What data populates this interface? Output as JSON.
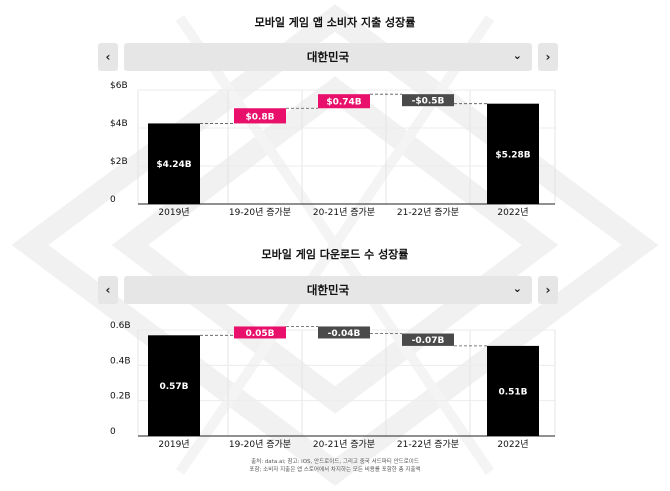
{
  "chart_data": [
    {
      "type": "waterfall",
      "title": "모바일 게임 앱 소비자 지출 성장률",
      "selector": {
        "value": "대한민국",
        "prev": "‹",
        "next": "›",
        "chevron": "⌄"
      },
      "categories": [
        "2019년",
        "19-20년 증가분",
        "20-21년 증가분",
        "21-22년 증가분",
        "2022년"
      ],
      "values": [
        4.24,
        0.8,
        0.74,
        -0.5,
        5.28
      ],
      "kinds": [
        "total",
        "delta",
        "delta",
        "delta",
        "total"
      ],
      "labels": [
        "$4.24B",
        "$0.8B",
        "$0.74B",
        "-$0.5B",
        "$5.28B"
      ],
      "yticks": [
        0,
        2,
        4,
        6
      ],
      "yticklabels": [
        "0",
        "$2B",
        "$4B",
        "$6B"
      ],
      "ylim": [
        0,
        6
      ],
      "grid": true,
      "colors": {
        "total": "#000000",
        "increase": "#e8106a",
        "decrease": "#4a4a4a"
      }
    },
    {
      "type": "waterfall",
      "title": "모바일 게임 다운로드 수 성장률",
      "selector": {
        "value": "대한민국",
        "prev": "‹",
        "next": "›",
        "chevron": "⌄"
      },
      "categories": [
        "2019년",
        "19-20년 증가분",
        "20-21년 증가분",
        "21-22년 증가분",
        "2022년"
      ],
      "values": [
        0.57,
        0.05,
        -0.04,
        -0.07,
        0.51
      ],
      "kinds": [
        "total",
        "delta",
        "delta",
        "delta",
        "total"
      ],
      "labels": [
        "0.57B",
        "0.05B",
        "-0.04B",
        "-0.07B",
        "0.51B"
      ],
      "yticks": [
        0,
        0.2,
        0.4,
        0.6
      ],
      "yticklabels": [
        "0",
        "0.2B",
        "0.4B",
        "0.6B"
      ],
      "ylim": [
        0,
        0.6
      ],
      "grid": true,
      "colors": {
        "total": "#000000",
        "increase": "#e8106a",
        "decrease": "#4a4a4a"
      }
    }
  ],
  "source": {
    "line1": "출처: data.ai; 참고: iOS, 안드로이드, 그리고 중국 서드파티 안드로이드",
    "line2": "포함; 소비자 지출은 앱 스토어에서 차지하는 모든 비용를 포함한 총 지출액"
  }
}
